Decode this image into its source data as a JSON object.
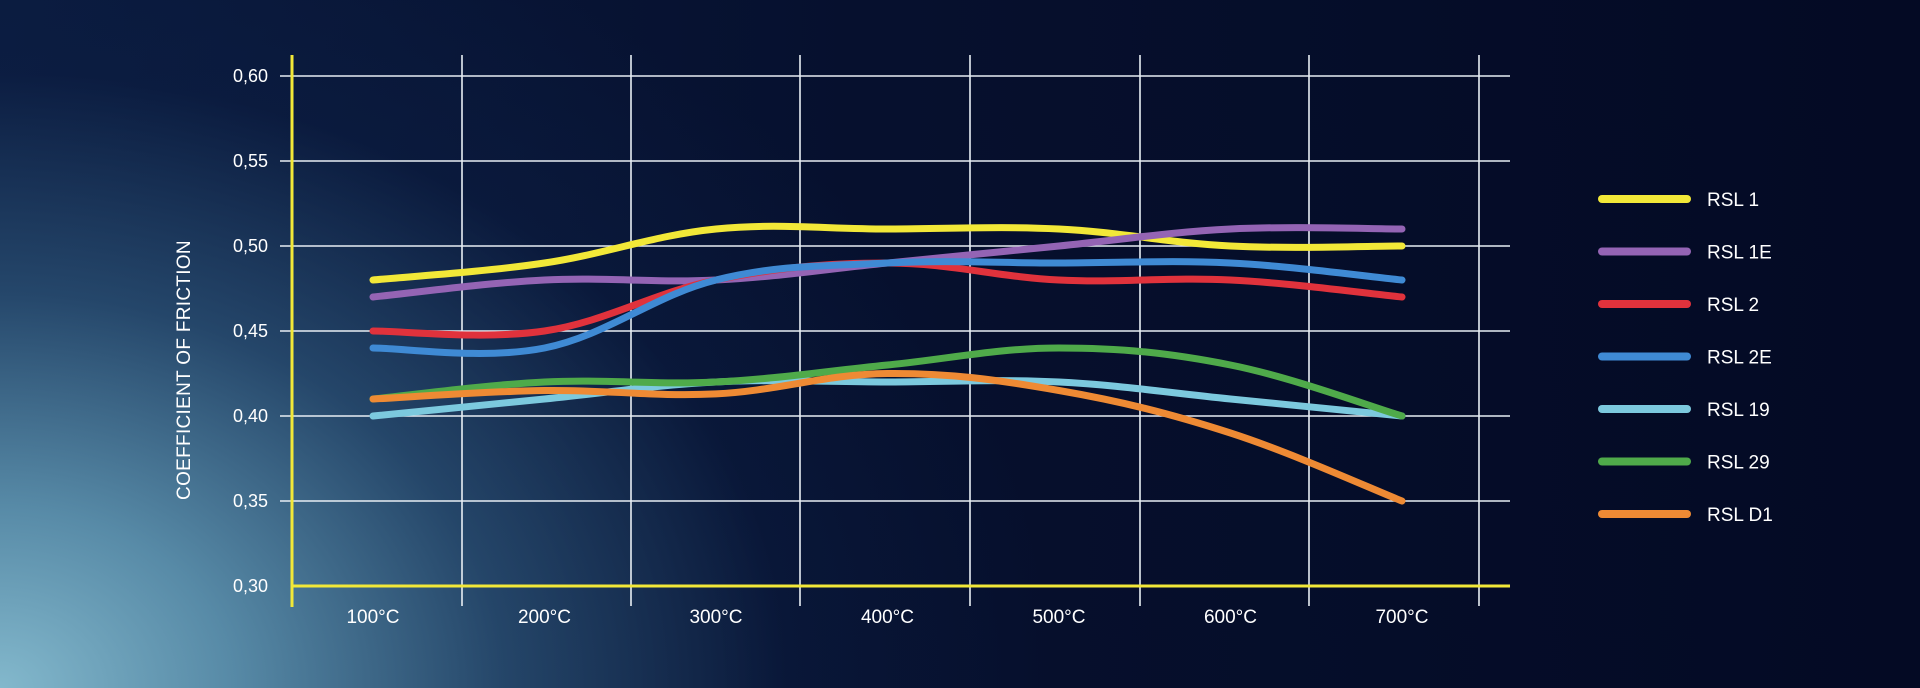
{
  "chart_data": {
    "type": "line",
    "ylabel": "COEFFICIENT OF FRICTION",
    "xlabel": "",
    "x": [
      "100°C",
      "200°C",
      "300°C",
      "400°C",
      "500°C",
      "600°C",
      "700°C"
    ],
    "y_ticks": [
      "0,30",
      "0,35",
      "0,40",
      "0,45",
      "0,50",
      "0,55",
      "0,60"
    ],
    "ylim": [
      0.3,
      0.6
    ],
    "grid": true,
    "legend": "right",
    "series": [
      {
        "name": "RSL 1",
        "color": "#f2e838",
        "values": [
          0.48,
          0.49,
          0.51,
          0.51,
          0.51,
          0.5,
          0.5
        ]
      },
      {
        "name": "RSL 1E",
        "color": "#9464b4",
        "values": [
          0.47,
          0.48,
          0.48,
          0.49,
          0.5,
          0.51,
          0.51
        ]
      },
      {
        "name": "RSL 2",
        "color": "#e0323c",
        "values": [
          0.45,
          0.45,
          0.48,
          0.49,
          0.48,
          0.48,
          0.47
        ]
      },
      {
        "name": "RSL 2E",
        "color": "#3f8ad4",
        "values": [
          0.44,
          0.44,
          0.48,
          0.49,
          0.49,
          0.49,
          0.48
        ]
      },
      {
        "name": "RSL 19",
        "color": "#7cc9de",
        "values": [
          0.4,
          0.41,
          0.42,
          0.42,
          0.42,
          0.41,
          0.4
        ]
      },
      {
        "name": "RSL 29",
        "color": "#4faa4a",
        "values": [
          0.41,
          0.42,
          0.42,
          0.43,
          0.44,
          0.43,
          0.4
        ]
      },
      {
        "name": "RSL D1",
        "color": "#ee8a34",
        "values": [
          0.41,
          0.415,
          0.413,
          0.425,
          0.415,
          0.39,
          0.35
        ]
      }
    ]
  }
}
